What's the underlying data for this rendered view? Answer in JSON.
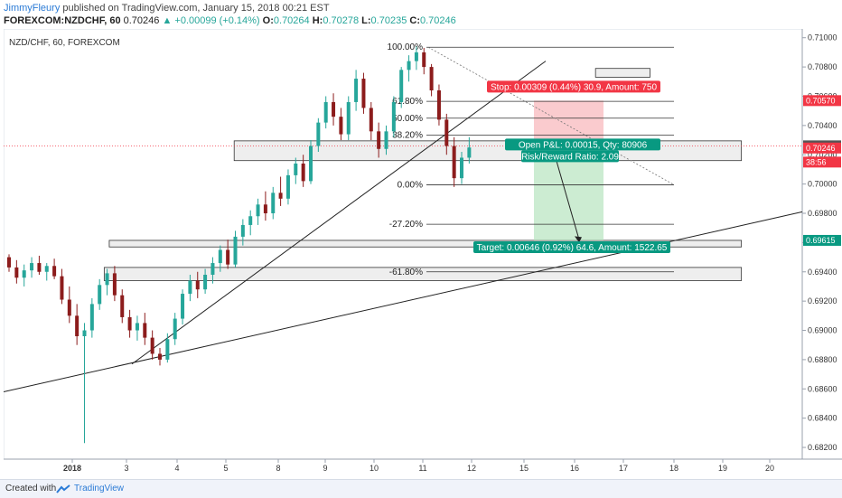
{
  "header": {
    "author": "JimmyFleury",
    "published": "published on TradingView.com, January 15, 2018 00:21 EST",
    "symbol_line": "FOREXCOM:NZDCHF, 60",
    "last": "0.70246",
    "change": "▲ +0.00099 (+0.14%)",
    "o_label": "O:",
    "o": "0.70264",
    "h_label": "H:",
    "h": "0.70278",
    "l_label": "L:",
    "l": "0.70235",
    "c_label": "C:",
    "c": "0.70246"
  },
  "chart_title": "NZD/CHF, 60, FOREXCOM",
  "footer": {
    "created": "Created with",
    "brand": "TradingView"
  },
  "colors": {
    "up": "#26a69a",
    "down": "#8c1c1c",
    "stop": "#f23645",
    "target": "#089981",
    "fib": "#333333"
  },
  "chart_data": {
    "type": "candlestick",
    "ylim": [
      0.6812,
      0.7106
    ],
    "y_ticks": [
      "0.71000",
      "0.70800",
      "0.70600",
      "0.70400",
      "0.70200",
      "0.70000",
      "0.69800",
      "0.69600",
      "0.69400",
      "0.69200",
      "0.69000",
      "0.68800",
      "0.68600",
      "0.68400",
      "0.68200"
    ],
    "x_ticks": [
      "2018",
      "3",
      "4",
      "5",
      "8",
      "9",
      "10",
      "11",
      "12",
      "15",
      "16",
      "17",
      "18",
      "19",
      "20"
    ],
    "price_labels": [
      {
        "text": "0.70570",
        "value": 0.7057,
        "color": "#f23645"
      },
      {
        "text": "0.70261",
        "value": 0.70261,
        "color": "#555555"
      },
      {
        "text": "0.70246",
        "value": 0.70246,
        "color": "#f23645"
      },
      {
        "text": "38:56",
        "value": 0.7015,
        "color": "#f23645"
      },
      {
        "text": "0.69615",
        "value": 0.69615,
        "color": "#089981"
      }
    ],
    "fib_levels": [
      {
        "label": "100.00%",
        "value": 0.70935
      },
      {
        "label": "61.80%",
        "value": 0.70565
      },
      {
        "label": "50.00%",
        "value": 0.7045
      },
      {
        "label": "38.20%",
        "value": 0.70335
      },
      {
        "label": "0.00%",
        "value": 0.69995
      },
      {
        "label": "-27.20%",
        "value": 0.69725
      },
      {
        "label": "-61.80%",
        "value": 0.694
      }
    ],
    "zones": [
      {
        "x0": 0.706,
        "x1": 0.771,
        "y0": 0.7079,
        "y1": 0.7073
      },
      {
        "x0": 0.275,
        "x1": 0.88,
        "y0": 0.70295,
        "y1": 0.7016
      },
      {
        "x0": 0.126,
        "x1": 0.88,
        "y0": 0.69615,
        "y1": 0.6957
      },
      {
        "x0": 0.12,
        "x1": 0.88,
        "y0": 0.6943,
        "y1": 0.6934
      }
    ],
    "position": {
      "entry": 0.70261,
      "stop": 0.7057,
      "target": 0.69615,
      "stop_text": "Stop: 0.00309 (0.44%) 30.9, Amount: 750",
      "pnl_text": "Open P&L: 0.00015, Qty: 80906",
      "rr_text": "Risk/Reward Ratio: 2.09",
      "target_text": "Target: 0.00646 (0.92%) 64.6, Amount: 1522.65"
    },
    "candles": [
      [
        0.695,
        0.6952,
        0.694,
        0.6943
      ],
      [
        0.6943,
        0.6948,
        0.6932,
        0.6936
      ],
      [
        0.6936,
        0.6945,
        0.693,
        0.6941
      ],
      [
        0.6941,
        0.695,
        0.6936,
        0.6946
      ],
      [
        0.6946,
        0.6951,
        0.6938,
        0.694
      ],
      [
        0.694,
        0.6946,
        0.6934,
        0.6944
      ],
      [
        0.6944,
        0.6949,
        0.6935,
        0.6937
      ],
      [
        0.6937,
        0.6942,
        0.6918,
        0.6921
      ],
      [
        0.6921,
        0.693,
        0.6905,
        0.691
      ],
      [
        0.691,
        0.6918,
        0.689,
        0.6896
      ],
      [
        0.6896,
        0.6905,
        0.6823,
        0.69
      ],
      [
        0.69,
        0.6922,
        0.6895,
        0.6918
      ],
      [
        0.6918,
        0.6935,
        0.6914,
        0.6931
      ],
      [
        0.6931,
        0.6942,
        0.6924,
        0.6939
      ],
      [
        0.6939,
        0.6944,
        0.692,
        0.6924
      ],
      [
        0.6924,
        0.6928,
        0.6905,
        0.6909
      ],
      [
        0.6909,
        0.6914,
        0.6895,
        0.69
      ],
      [
        0.69,
        0.691,
        0.6893,
        0.6905
      ],
      [
        0.6905,
        0.6912,
        0.689,
        0.6895
      ],
      [
        0.6895,
        0.69,
        0.688,
        0.6884
      ],
      [
        0.6884,
        0.6888,
        0.6876,
        0.688
      ],
      [
        0.688,
        0.6898,
        0.6878,
        0.6894
      ],
      [
        0.6894,
        0.6912,
        0.689,
        0.6908
      ],
      [
        0.6908,
        0.6928,
        0.6904,
        0.6925
      ],
      [
        0.6925,
        0.6938,
        0.692,
        0.6934
      ],
      [
        0.6934,
        0.694,
        0.6922,
        0.6928
      ],
      [
        0.6928,
        0.6942,
        0.6925,
        0.6938
      ],
      [
        0.6938,
        0.695,
        0.6932,
        0.6946
      ],
      [
        0.6946,
        0.6958,
        0.694,
        0.6955
      ],
      [
        0.6955,
        0.6962,
        0.6942,
        0.6945
      ],
      [
        0.6945,
        0.6968,
        0.6943,
        0.6964
      ],
      [
        0.6964,
        0.6976,
        0.6958,
        0.6972
      ],
      [
        0.6972,
        0.6982,
        0.6965,
        0.6978
      ],
      [
        0.6978,
        0.699,
        0.6972,
        0.6986
      ],
      [
        0.6986,
        0.6995,
        0.6975,
        0.698
      ],
      [
        0.698,
        0.6998,
        0.6976,
        0.6994
      ],
      [
        0.6994,
        0.7005,
        0.6985,
        0.699
      ],
      [
        0.699,
        0.701,
        0.6986,
        0.7006
      ],
      [
        0.7006,
        0.7018,
        0.7,
        0.7014
      ],
      [
        0.7014,
        0.702,
        0.6998,
        0.7002
      ],
      [
        0.7002,
        0.703,
        0.7,
        0.7026
      ],
      [
        0.7026,
        0.7045,
        0.7022,
        0.7042
      ],
      [
        0.7042,
        0.706,
        0.7038,
        0.7056
      ],
      [
        0.7056,
        0.7062,
        0.704,
        0.7046
      ],
      [
        0.7046,
        0.7052,
        0.703,
        0.7034
      ],
      [
        0.7034,
        0.706,
        0.703,
        0.7056
      ],
      [
        0.7056,
        0.7078,
        0.705,
        0.7072
      ],
      [
        0.7072,
        0.7076,
        0.7048,
        0.7052
      ],
      [
        0.7052,
        0.7056,
        0.703,
        0.7036
      ],
      [
        0.7036,
        0.7042,
        0.7018,
        0.7024
      ],
      [
        0.7024,
        0.704,
        0.702,
        0.7036
      ],
      [
        0.7036,
        0.706,
        0.7032,
        0.7056
      ],
      [
        0.7056,
        0.708,
        0.7052,
        0.7078
      ],
      [
        0.7078,
        0.7088,
        0.707,
        0.7084
      ],
      [
        0.7084,
        0.7094,
        0.7078,
        0.709
      ],
      [
        0.709,
        0.7093,
        0.7075,
        0.708
      ],
      [
        0.708,
        0.7082,
        0.706,
        0.7064
      ],
      [
        0.7064,
        0.7068,
        0.704,
        0.7044
      ],
      [
        0.7044,
        0.7048,
        0.702,
        0.7026
      ],
      [
        0.7026,
        0.7032,
        0.6998,
        0.7004
      ],
      [
        0.7004,
        0.7022,
        0.7,
        0.7018
      ],
      [
        0.7018,
        0.7032,
        0.7014,
        0.7025
      ]
    ]
  }
}
